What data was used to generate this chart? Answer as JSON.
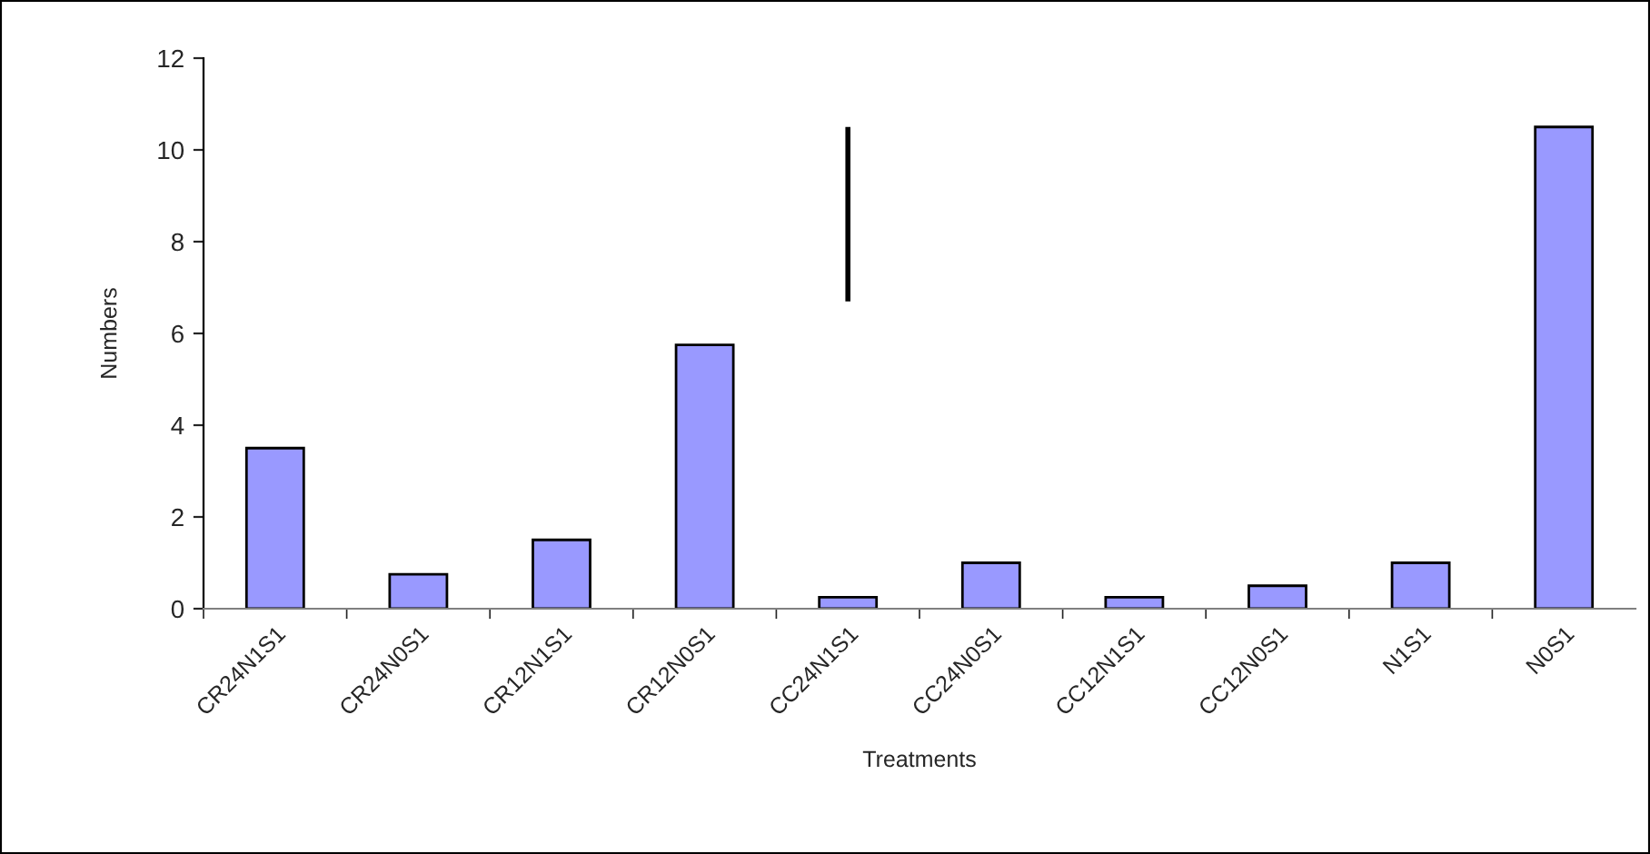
{
  "chart_data": {
    "type": "bar",
    "xlabel": "Treatments",
    "ylabel": "Numbers",
    "categories": [
      "CR24N1S1",
      "CR24N0S1",
      "CR12N1S1",
      "CR12N0S1",
      "CC24N1S1",
      "CC24N0S1",
      "CC12N1S1",
      "CC12N0S1",
      "N1S1",
      "N0S1"
    ],
    "values": [
      3.5,
      0.75,
      1.5,
      5.75,
      0.25,
      1.0,
      0.25,
      0.5,
      1.0,
      10.5
    ],
    "errors": [
      null,
      null,
      null,
      null,
      [
        6.7,
        10.5
      ],
      null,
      null,
      null,
      null,
      null
    ],
    "color": "#9999ff",
    "ylim": [
      0,
      12
    ],
    "yticks": [
      0,
      2,
      4,
      6,
      8,
      10,
      12
    ],
    "grid": false
  }
}
